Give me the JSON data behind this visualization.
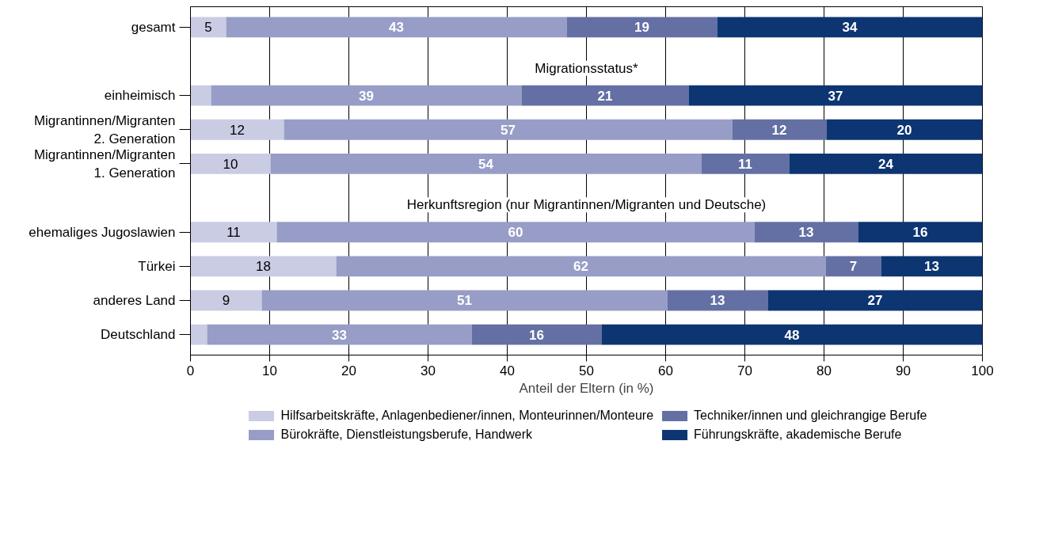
{
  "chart_data": {
    "type": "bar",
    "orientation": "horizontal",
    "stacked": true,
    "categories": [
      "gesamt",
      null,
      "einheimisch",
      "Migrantinnen/Migranten\n2. Generation",
      "Migrantinnen/Migranten\n1. Generation",
      null,
      "ehemaliges Jugoslawien",
      "Türkei",
      "anderes Land",
      "Deutschland"
    ],
    "series": [
      {
        "name": "Hilfsarbeitskräfte, Anlagenbediener/innen, Monteurinnen/Monteure",
        "color": "#c9cce3",
        "values": [
          4.5,
          null,
          2.6,
          11.8,
          10.1,
          null,
          10.9,
          18.4,
          9.0,
          2.1
        ],
        "value_labels": [
          "5",
          null,
          null,
          "12",
          "10",
          null,
          "11",
          "18",
          "9",
          null
        ]
      },
      {
        "name": "Bürokräfte, Dienstleistungsberufe, Handwerk",
        "color": "#979dc6",
        "values": [
          43,
          null,
          39.2,
          56.6,
          54.4,
          null,
          60.3,
          61.8,
          51.2,
          33.4
        ],
        "value_labels": [
          "43",
          null,
          "39",
          "57",
          "54",
          null,
          "60",
          "62",
          "51",
          "33"
        ]
      },
      {
        "name": "Techniker/innen und gleichrangige Berufe",
        "color": "#6470a4",
        "values": [
          19,
          null,
          21.1,
          11.9,
          11.1,
          null,
          13.1,
          7.0,
          12.7,
          16.4
        ],
        "value_labels": [
          "19",
          null,
          "21",
          "12",
          "11",
          null,
          "13",
          "7",
          "13",
          "16"
        ]
      },
      {
        "name": "Führungskräfte, akademische Berufe",
        "color": "#0d3572",
        "values": [
          33.5,
          null,
          37.1,
          19.7,
          24.4,
          null,
          15.7,
          12.8,
          27.1,
          48.1
        ],
        "value_labels": [
          "34",
          null,
          "37",
          "20",
          "24",
          null,
          "16",
          "13",
          "27",
          "48"
        ]
      }
    ],
    "annotations": [
      "Migrationsstatus*",
      "Herkunftsregion (nur Migrantinnen/Migranten und Deutsche)"
    ],
    "xlabel": "Anteil der Eltern (in %)",
    "xlim": [
      0,
      100
    ],
    "xticks": [
      0,
      10,
      20,
      30,
      40,
      50,
      60,
      70,
      80,
      90,
      100
    ],
    "grid": "x",
    "legend": "bottom"
  }
}
